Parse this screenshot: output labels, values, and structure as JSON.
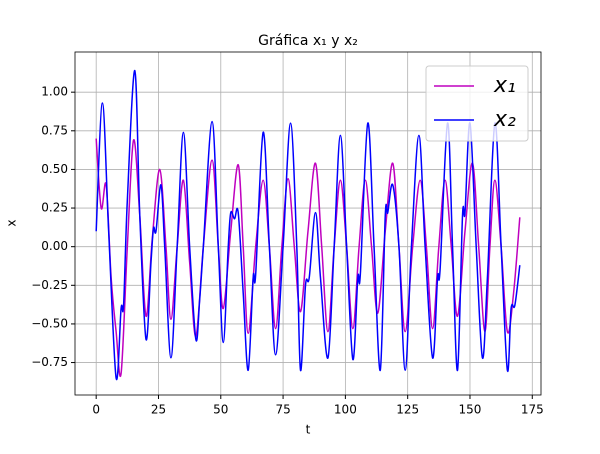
{
  "chart_data": {
    "type": "line",
    "title": "Gráfica x₁ y x₂",
    "x_label": "t",
    "y_label": "x",
    "xlim": [
      -8.5,
      178.5
    ],
    "ylim": [
      -0.96,
      1.26
    ],
    "xticks": [
      0,
      25,
      50,
      75,
      100,
      125,
      150,
      175
    ],
    "yticks": [
      {
        "value": -0.75,
        "label": "−0.75"
      },
      {
        "value": -0.5,
        "label": "−0.50"
      },
      {
        "value": -0.25,
        "label": "−0.25"
      },
      {
        "value": 0,
        "label": "0.00"
      },
      {
        "value": 0.25,
        "label": "0.25"
      },
      {
        "value": 0.5,
        "label": "0.50"
      },
      {
        "value": 0.75,
        "label": "0.75"
      },
      {
        "value": 1,
        "label": "1.00"
      }
    ],
    "grid": true,
    "legend": "upper right",
    "series": [
      {
        "name": "x₁",
        "color": "#bf00bf",
        "x": [
          0,
          2,
          4,
          6,
          8,
          10,
          12.5,
          15,
          17.5,
          20,
          22.5,
          25.5,
          28,
          30,
          32.5,
          35,
          37.5,
          40,
          43,
          46.5,
          49,
          51,
          54,
          57,
          59,
          61,
          64,
          67,
          69.5,
          72,
          74.5,
          77,
          79.5,
          82,
          85,
          88,
          90.5,
          93,
          95.5,
          98,
          100.5,
          103,
          105.5,
          108,
          110.5,
          113,
          116,
          119,
          121.5,
          124,
          127,
          130,
          132.5,
          135,
          137.5,
          140,
          142.5,
          145,
          148,
          151,
          153.5,
          156,
          158,
          160,
          162.5,
          165,
          167.5,
          170
        ],
        "values": [
          0.7,
          0.25,
          0.4,
          -0.2,
          -0.55,
          -0.82,
          0,
          0.69,
          0.2,
          -0.45,
          0.05,
          0.5,
          0,
          -0.47,
          0,
          0.43,
          -0.1,
          -0.58,
          0,
          0.56,
          0,
          -0.4,
          0.1,
          0.53,
          0,
          -0.56,
          0,
          0.43,
          0,
          -0.53,
          0,
          0.44,
          0,
          -0.42,
          0.1,
          0.54,
          0,
          -0.55,
          0,
          0.43,
          0,
          -0.53,
          0,
          0.43,
          0,
          -0.43,
          0.1,
          0.54,
          0,
          -0.55,
          0,
          0.43,
          0,
          -0.53,
          0,
          0.43,
          0,
          -0.45,
          0.1,
          0.54,
          0,
          -0.55,
          0,
          0.43,
          0,
          -0.55,
          -0.3,
          0.19
        ]
      },
      {
        "name": "x₂",
        "color": "#0000ff",
        "x": [
          0,
          2.5,
          5,
          8,
          10,
          11,
          12.5,
          15.5,
          17.5,
          20,
          22,
          23,
          24,
          26,
          27.5,
          30,
          32.5,
          35,
          37.5,
          40,
          41.5,
          43,
          46.5,
          49,
          51,
          53,
          54,
          55.5,
          57,
          59,
          61,
          63,
          64,
          67,
          69.5,
          72,
          75,
          78,
          80.5,
          82,
          84,
          85.5,
          88,
          90,
          93,
          95.5,
          98,
          100.5,
          103,
          105,
          106,
          109,
          111.5,
          114,
          116,
          117,
          119,
          121.5,
          124,
          126.5,
          129.5,
          132,
          135,
          137,
          138,
          141,
          143,
          145,
          147,
          148,
          150,
          152.5,
          155,
          157,
          160,
          162.5,
          165,
          166.5,
          168,
          170
        ],
        "values": [
          0.1,
          0.93,
          0.1,
          -0.85,
          -0.4,
          -0.38,
          0.3,
          1.14,
          0.2,
          -0.6,
          -0.1,
          0.12,
          0.1,
          0.4,
          0,
          -0.72,
          0,
          0.74,
          0,
          -0.6,
          -0.35,
          0,
          0.81,
          0,
          -0.62,
          0,
          0.22,
          0.18,
          0.22,
          -0.3,
          -0.8,
          -0.2,
          -0.18,
          0.74,
          0,
          -0.7,
          0,
          0.8,
          0,
          -0.8,
          -0.25,
          -0.2,
          0.22,
          -0.2,
          -0.72,
          0,
          0.72,
          0,
          -0.73,
          -0.2,
          -0.18,
          0.8,
          0,
          -0.8,
          0.2,
          0.22,
          0.4,
          0,
          -0.8,
          0,
          0.72,
          0,
          -0.72,
          -0.2,
          -0.15,
          0.8,
          0,
          -0.8,
          0.2,
          0.22,
          0.8,
          0,
          -0.72,
          -0.2,
          0.8,
          0,
          -0.8,
          -0.4,
          -0.38,
          -0.12
        ]
      }
    ]
  }
}
